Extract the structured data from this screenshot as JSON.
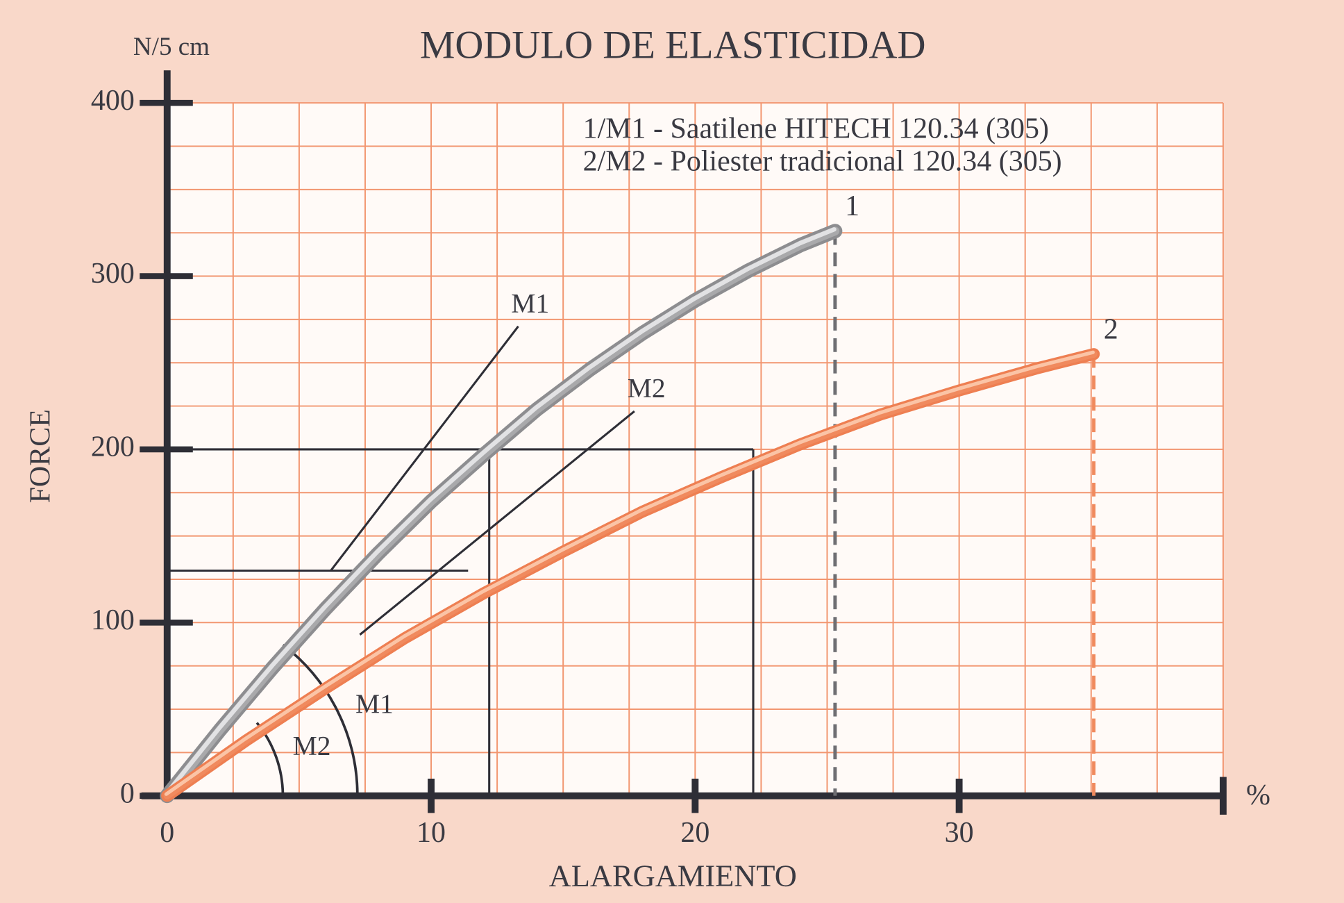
{
  "chart_data": {
    "type": "line",
    "title": "MODULO DE ELASTICIDAD",
    "y_unit": "N/5 cm",
    "ylabel": "FORCE",
    "xlabel": "ALARGAMIENTO",
    "x_unit": "%",
    "xlim": [
      0,
      40
    ],
    "ylim": [
      0,
      400
    ],
    "xticks": [
      0,
      10,
      20,
      30
    ],
    "yticks": [
      0,
      100,
      200,
      300,
      400
    ],
    "grid": true,
    "x_grid": [
      2.5,
      5,
      7.5,
      10,
      12.5,
      15,
      17.5,
      20,
      22.5,
      25,
      27.5,
      30,
      32.5,
      35,
      37.5,
      40
    ],
    "y_grid": [
      25,
      50,
      75,
      100,
      125,
      150,
      175,
      200,
      225,
      250,
      275,
      300,
      325,
      350,
      375,
      400
    ],
    "series": [
      {
        "name": "1/M1 - Saatilene HITECH 120.34 (305)",
        "color": "#a9a9ab",
        "end_label": "1",
        "x": [
          0,
          2,
          4,
          6,
          8,
          10,
          12,
          14,
          16,
          18,
          20,
          22,
          24,
          25.3
        ],
        "values": [
          0,
          38,
          74,
          108,
          140,
          170,
          197,
          223,
          246,
          267,
          286,
          303,
          318,
          326
        ]
      },
      {
        "name": "2/M2 - Poliester tradicional 120.34 (305)",
        "color": "#f08a5e",
        "end_label": "2",
        "x": [
          0,
          3,
          6,
          9,
          12,
          15,
          18,
          21,
          24,
          27,
          30,
          33,
          35.1
        ],
        "values": [
          0,
          32,
          62,
          91,
          117,
          141,
          164,
          184,
          203,
          220,
          234,
          247,
          255
        ]
      }
    ],
    "tangents": [
      {
        "label": "M1",
        "angle_label": "M1",
        "x": [
          6.2,
          13.3
        ],
        "y": [
          130,
          271
        ]
      },
      {
        "label": "M2",
        "angle_label": "M2",
        "x": [
          7.3,
          17.7
        ],
        "y": [
          93,
          222
        ]
      }
    ],
    "hlines": [
      {
        "y": 200,
        "x": 22.2
      },
      {
        "y": 130,
        "x": 11.4
      }
    ],
    "vlines": [
      {
        "x": 12.2,
        "y": 200
      },
      {
        "x": 22.2,
        "y": 200
      }
    ]
  }
}
